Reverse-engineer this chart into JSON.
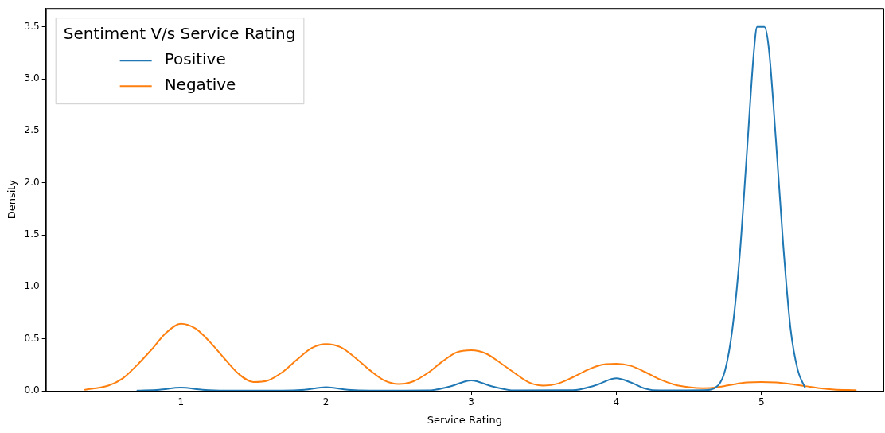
{
  "chart_data": {
    "type": "line",
    "xlabel": "Service Rating",
    "ylabel": "Density",
    "legend_title": "Sentiment V/s Service Rating",
    "legend": "top left",
    "grid": false,
    "marker": "none",
    "line_style": "solid",
    "xlim": [
      0.07,
      5.84
    ],
    "xticks": [
      1,
      2,
      3,
      4,
      5
    ],
    "ylim": [
      0,
      3.68
    ],
    "yticks": [
      {
        "value": 0,
        "label": "0.0"
      },
      {
        "value": 0.5,
        "label": "0.5"
      },
      {
        "value": 1,
        "label": "1.0"
      },
      {
        "value": 1.5,
        "label": "1.5"
      },
      {
        "value": 2,
        "label": "2.0"
      },
      {
        "value": 2.5,
        "label": "2.5"
      },
      {
        "value": 3,
        "label": "3.0"
      },
      {
        "value": 3.5,
        "label": "3.5"
      }
    ],
    "series": [
      {
        "name": "Positive",
        "color": "#1f77b4",
        "x": [
          0.7,
          0.85,
          1.0,
          1.15,
          1.3,
          1.7,
          1.85,
          2.0,
          2.15,
          2.3,
          2.7,
          2.85,
          3.0,
          3.15,
          3.3,
          3.7,
          3.85,
          4.0,
          4.1,
          4.2,
          4.3,
          4.6,
          4.7,
          4.75,
          4.8,
          4.85,
          4.9,
          4.95,
          4.97,
          5.02,
          5.05,
          5.1,
          5.15,
          5.2,
          5.25,
          5.3
        ],
        "values": [
          0.002,
          0.01,
          0.03,
          0.01,
          0.002,
          0.002,
          0.01,
          0.035,
          0.01,
          0.002,
          0.003,
          0.04,
          0.1,
          0.04,
          0.003,
          0.005,
          0.05,
          0.12,
          0.08,
          0.02,
          0.003,
          0.005,
          0.05,
          0.2,
          0.6,
          1.3,
          2.3,
          3.3,
          3.5,
          3.5,
          3.3,
          2.4,
          1.4,
          0.6,
          0.2,
          0.03
        ]
      },
      {
        "name": "Negative",
        "color": "#ff7f0e",
        "x": [
          0.34,
          0.5,
          0.6,
          0.7,
          0.8,
          0.9,
          1.0,
          1.1,
          1.2,
          1.3,
          1.4,
          1.5,
          1.6,
          1.7,
          1.8,
          1.9,
          2.0,
          2.1,
          2.2,
          2.3,
          2.4,
          2.5,
          2.6,
          2.7,
          2.8,
          2.9,
          3.0,
          3.1,
          3.2,
          3.3,
          3.4,
          3.5,
          3.6,
          3.7,
          3.8,
          3.9,
          4.0,
          4.1,
          4.2,
          4.3,
          4.4,
          4.5,
          4.6,
          4.7,
          4.8,
          4.9,
          5.0,
          5.1,
          5.2,
          5.3,
          5.4,
          5.5,
          5.65
        ],
        "values": [
          0.01,
          0.05,
          0.12,
          0.25,
          0.4,
          0.56,
          0.645,
          0.6,
          0.47,
          0.31,
          0.16,
          0.085,
          0.1,
          0.18,
          0.3,
          0.41,
          0.45,
          0.42,
          0.32,
          0.2,
          0.1,
          0.065,
          0.09,
          0.17,
          0.28,
          0.37,
          0.39,
          0.36,
          0.27,
          0.17,
          0.08,
          0.05,
          0.07,
          0.13,
          0.2,
          0.25,
          0.26,
          0.24,
          0.18,
          0.11,
          0.06,
          0.035,
          0.025,
          0.035,
          0.06,
          0.08,
          0.085,
          0.08,
          0.065,
          0.045,
          0.025,
          0.012,
          0.005
        ]
      }
    ]
  }
}
